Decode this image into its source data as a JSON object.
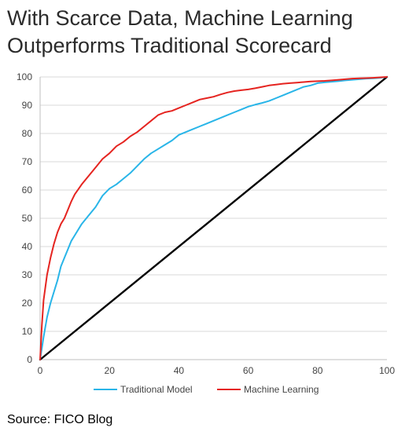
{
  "title_lines": [
    "With Scarce Data, Machine Learning",
    "Outperforms Traditional Scorecard"
  ],
  "source": "Source: FICO Blog",
  "chart_data": {
    "type": "line",
    "title": "With Scarce Data, Machine Learning Outperforms Traditional Scorecard",
    "xlabel": "",
    "ylabel": "",
    "xlim": [
      0,
      100
    ],
    "ylim": [
      0,
      100
    ],
    "xticks": [
      0,
      20,
      40,
      60,
      80,
      100
    ],
    "yticks": [
      0,
      10,
      20,
      30,
      40,
      50,
      60,
      70,
      80,
      90,
      100
    ],
    "grid": "horizontal",
    "legend": "bottom",
    "series": [
      {
        "name": "Traditional Model",
        "color": "#29b5e8",
        "x": [
          0,
          1,
          2,
          3,
          4,
          5,
          6,
          7,
          8,
          9,
          10,
          12,
          14,
          16,
          18,
          20,
          22,
          24,
          26,
          28,
          30,
          32,
          34,
          36,
          38,
          40,
          42,
          44,
          46,
          48,
          50,
          52,
          54,
          56,
          58,
          60,
          62,
          64,
          66,
          68,
          70,
          72,
          74,
          76,
          78,
          80,
          82,
          84,
          86,
          88,
          90,
          92,
          94,
          96,
          98,
          100
        ],
        "values": [
          0,
          8,
          15,
          20,
          24,
          28,
          33,
          36,
          39,
          42,
          44,
          48,
          51,
          54,
          58,
          60.5,
          62,
          64,
          66,
          68.5,
          71,
          73,
          74.5,
          76,
          77.5,
          79.5,
          80.5,
          81.5,
          82.5,
          83.5,
          84.5,
          85.5,
          86.5,
          87.5,
          88.5,
          89.5,
          90.2,
          90.8,
          91.5,
          92.5,
          93.5,
          94.5,
          95.5,
          96.5,
          97,
          97.8,
          98.1,
          98.3,
          98.5,
          98.8,
          99,
          99.2,
          99.4,
          99.5,
          99.7,
          100
        ]
      },
      {
        "name": "Machine Learning",
        "color": "#e52420",
        "x": [
          0,
          0.5,
          1,
          2,
          3,
          4,
          5,
          6,
          7,
          8,
          9,
          10,
          12,
          14,
          16,
          18,
          20,
          22,
          24,
          26,
          28,
          30,
          32,
          34,
          36,
          38,
          40,
          42,
          44,
          46,
          48,
          50,
          52,
          54,
          56,
          58,
          60,
          62,
          64,
          66,
          68,
          70,
          72,
          74,
          76,
          78,
          80,
          82,
          84,
          86,
          88,
          90,
          92,
          94,
          96,
          98,
          100
        ],
        "values": [
          0,
          12,
          21,
          30,
          36,
          41,
          45,
          48,
          50,
          53,
          56,
          58.5,
          62,
          65,
          68,
          71,
          73,
          75.5,
          77,
          79,
          80.5,
          82.5,
          84.5,
          86.5,
          87.5,
          88,
          89,
          90,
          91,
          92,
          92.5,
          93,
          93.8,
          94.5,
          95,
          95.3,
          95.6,
          96,
          96.5,
          97,
          97.3,
          97.6,
          97.8,
          98,
          98.2,
          98.4,
          98.5,
          98.6,
          98.8,
          99,
          99.2,
          99.4,
          99.5,
          99.6,
          99.7,
          99.85,
          100
        ]
      },
      {
        "name": "",
        "color": "#000000",
        "x": [
          0,
          100
        ],
        "values": [
          0,
          100
        ]
      }
    ]
  }
}
